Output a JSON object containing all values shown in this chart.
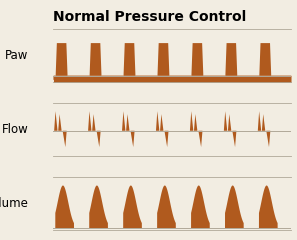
{
  "title": "Normal Pressure Control",
  "title_fontsize": 10,
  "title_fontweight": "bold",
  "bg_color": "#f2ede2",
  "panel_bg": "#f2ede2",
  "waveform_color": "#b05a1e",
  "border_color": "#b0a898",
  "labels": [
    "Paw",
    "Flow",
    "Volume"
  ],
  "label_fontsize": 8.5,
  "n_cycles": 7,
  "fig_width": 2.97,
  "fig_height": 2.4,
  "dpi": 100
}
